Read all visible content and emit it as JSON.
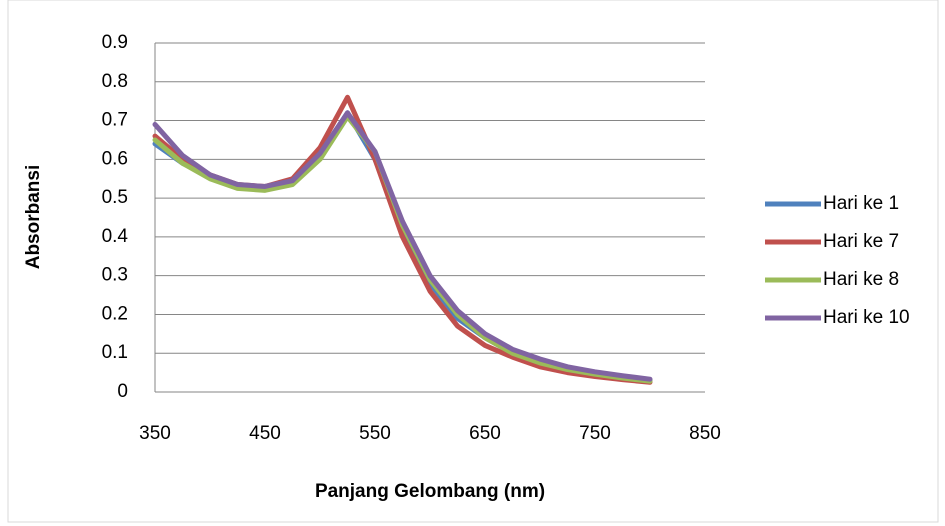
{
  "chart_data": {
    "type": "line",
    "x_label": "Panjang Gelombang (nm)",
    "y_label": "Absorbansi",
    "x": [
      350,
      375,
      400,
      425,
      450,
      475,
      500,
      525,
      550,
      575,
      600,
      625,
      650,
      675,
      700,
      725,
      750,
      775,
      800
    ],
    "series": [
      {
        "name": "Hari ke 1",
        "color": "#4f81bd",
        "values": [
          0.64,
          0.59,
          0.555,
          0.53,
          0.525,
          0.54,
          0.61,
          0.72,
          0.6,
          0.42,
          0.28,
          0.19,
          0.14,
          0.1,
          0.075,
          0.06,
          0.048,
          0.038,
          0.03
        ]
      },
      {
        "name": "Hari ke 7",
        "color": "#c0504d",
        "values": [
          0.66,
          0.6,
          0.56,
          0.535,
          0.53,
          0.55,
          0.63,
          0.76,
          0.6,
          0.4,
          0.26,
          0.17,
          0.12,
          0.09,
          0.065,
          0.05,
          0.04,
          0.032,
          0.025
        ]
      },
      {
        "name": "Hari ke 8",
        "color": "#9bbb59",
        "values": [
          0.65,
          0.59,
          0.55,
          0.525,
          0.52,
          0.535,
          0.6,
          0.71,
          0.62,
          0.43,
          0.29,
          0.2,
          0.14,
          0.1,
          0.075,
          0.058,
          0.046,
          0.036,
          0.028
        ]
      },
      {
        "name": "Hari ke 10",
        "color": "#8064a2",
        "values": [
          0.69,
          0.61,
          0.56,
          0.535,
          0.53,
          0.545,
          0.615,
          0.72,
          0.62,
          0.44,
          0.3,
          0.21,
          0.15,
          0.11,
          0.085,
          0.065,
          0.052,
          0.042,
          0.033
        ]
      }
    ],
    "xlim": [
      350,
      850
    ],
    "xticks": [
      350,
      450,
      550,
      650,
      750,
      850
    ],
    "ylim": [
      0,
      0.9
    ],
    "yticks": [
      0,
      0.1,
      0.2,
      0.3,
      0.4,
      0.5,
      0.6,
      0.7,
      0.8,
      0.9
    ],
    "grid": true,
    "legend": "right"
  }
}
